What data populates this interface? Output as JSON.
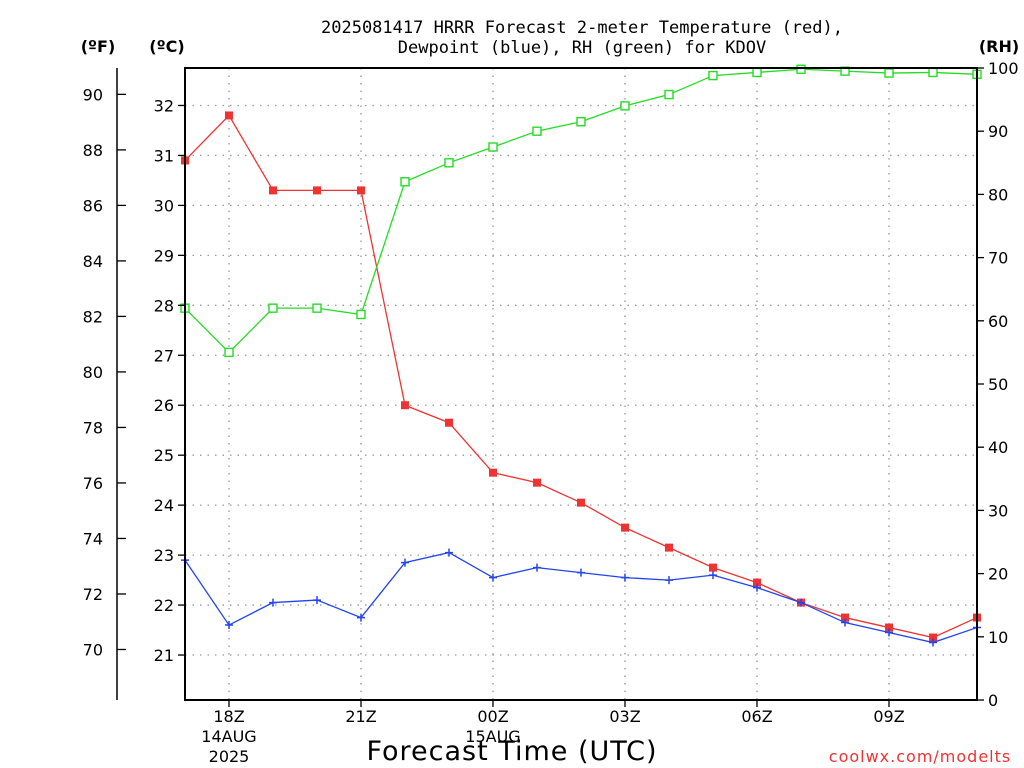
{
  "title_line1": "2025081417 HRRR Forecast 2-meter Temperature (red),",
  "title_line2": "Dewpoint (blue), RH (green) for KDOV",
  "x_axis_label": "Forecast Time (UTC)",
  "credit": "coolwx.com/modelts",
  "colors": {
    "temperature": "#ee3333",
    "dewpoint": "#2244ee",
    "rh": "#22dd22",
    "grid": "#999999"
  },
  "chart_data": {
    "type": "line",
    "title": "2025081417 HRRR Forecast 2-meter Temperature (red), Dewpoint (blue), RH (green) for KDOV",
    "xlabel": "Forecast Time (UTC)",
    "x_hours": [
      17,
      18,
      19,
      20,
      21,
      22,
      23,
      24,
      25,
      26,
      27,
      28,
      29,
      30,
      31,
      32,
      33,
      34,
      35
    ],
    "x_ticks": [
      {
        "hour": 18,
        "label": "18Z",
        "sub": [
          "14AUG",
          "2025"
        ]
      },
      {
        "hour": 21,
        "label": "21Z",
        "sub": []
      },
      {
        "hour": 24,
        "label": "00Z",
        "sub": [
          "15AUG"
        ]
      },
      {
        "hour": 27,
        "label": "03Z",
        "sub": []
      },
      {
        "hour": 30,
        "label": "06Z",
        "sub": []
      },
      {
        "hour": 33,
        "label": "09Z",
        "sub": []
      }
    ],
    "xlim": [
      17,
      35
    ],
    "left_axis_c": {
      "unit": "(ºC)",
      "ticks": [
        21,
        22,
        23,
        24,
        25,
        26,
        27,
        28,
        29,
        30,
        31,
        32
      ],
      "lim": [
        20.1,
        32.75
      ]
    },
    "left_axis_f": {
      "unit": "(ºF)",
      "ticks": [
        70,
        72,
        74,
        76,
        78,
        80,
        82,
        84,
        86,
        88,
        90
      ]
    },
    "right_axis_rh": {
      "unit": "(RH)",
      "ticks": [
        0,
        10,
        20,
        30,
        40,
        50,
        60,
        70,
        80,
        90,
        100
      ],
      "lim": [
        0,
        100
      ]
    },
    "series": [
      {
        "name": "Temperature",
        "axis": "C",
        "marker": "filled-square",
        "values": [
          30.9,
          31.8,
          30.3,
          30.3,
          30.3,
          26.0,
          25.65,
          24.65,
          24.45,
          24.05,
          23.55,
          23.15,
          22.75,
          22.45,
          22.05,
          21.75,
          21.55,
          21.35,
          21.75
        ]
      },
      {
        "name": "Dewpoint",
        "axis": "C",
        "marker": "plus",
        "values": [
          22.9,
          21.6,
          22.05,
          22.1,
          21.75,
          22.85,
          23.05,
          22.55,
          22.75,
          22.65,
          22.55,
          22.5,
          22.6,
          22.35,
          22.05,
          21.65,
          21.45,
          21.25,
          21.55
        ]
      },
      {
        "name": "RH",
        "axis": "RH",
        "marker": "open-square",
        "values": [
          62,
          55,
          62,
          62,
          61,
          82,
          85,
          87.5,
          90,
          91.5,
          94,
          95.8,
          98.8,
          99.3,
          99.8,
          99.5,
          99.2,
          99.3,
          99
        ]
      }
    ]
  }
}
